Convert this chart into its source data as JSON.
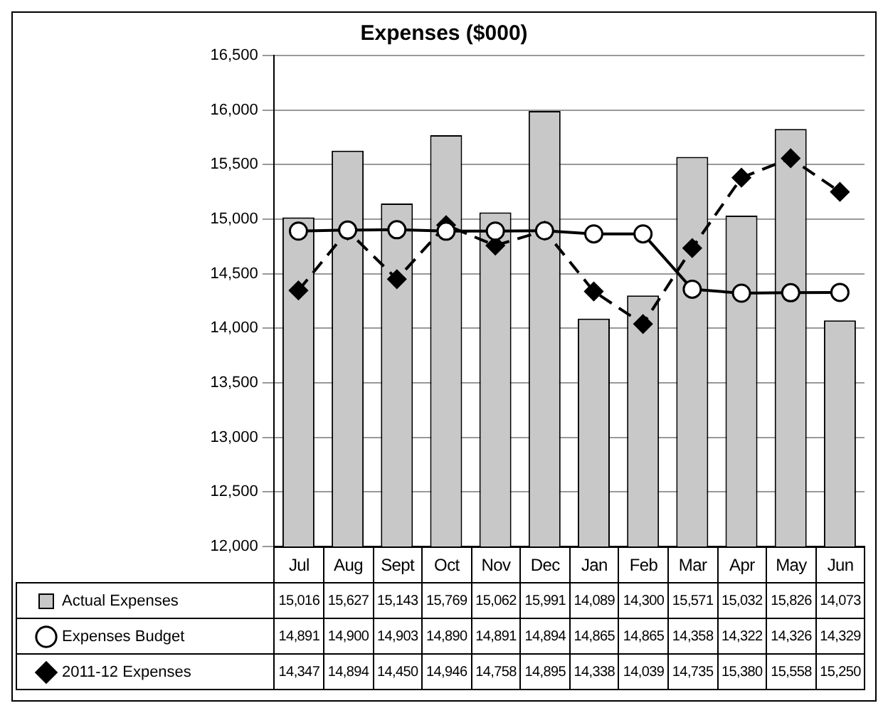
{
  "chart_data": {
    "type": "bar",
    "title": "Expenses ($000)",
    "categories": [
      "Jul",
      "Aug",
      "Sept",
      "Oct",
      "Nov",
      "Dec",
      "Jan",
      "Feb",
      "Mar",
      "Apr",
      "May",
      "Jun"
    ],
    "series": [
      {
        "name": "Actual Expenses",
        "color": "#c8c8c8",
        "values": [
          15016,
          15627,
          15143,
          15769,
          15062,
          15991,
          14089,
          14300,
          15571,
          15032,
          15826,
          14073
        ],
        "value_labels": [
          "15,016",
          "15,627",
          "15,143",
          "15,769",
          "15,062",
          "15,991",
          "14,089",
          "14,300",
          "15,571",
          "15,032",
          "15,826",
          "14,073"
        ]
      },
      {
        "name": "Expenses Budget",
        "type": "line",
        "color": "#000000",
        "marker": "circle",
        "line_style": "solid",
        "values": [
          14891,
          14900,
          14903,
          14890,
          14891,
          14894,
          14865,
          14865,
          14358,
          14322,
          14326,
          14329
        ],
        "value_labels": [
          "14,891",
          "14,900",
          "14,903",
          "14,890",
          "14,891",
          "14,894",
          "14,865",
          "14,865",
          "14,358",
          "14,322",
          "14,326",
          "14,329"
        ]
      },
      {
        "name": "2011-12 Expenses",
        "type": "line",
        "color": "#000000",
        "marker": "diamond",
        "line_style": "dashed",
        "values": [
          14347,
          14894,
          14450,
          14946,
          14758,
          14895,
          14338,
          14039,
          14735,
          15380,
          15558,
          15250
        ],
        "value_labels": [
          "14,347",
          "14,894",
          "14,450",
          "14,946",
          "14,758",
          "14,895",
          "14,338",
          "14,039",
          "14,735",
          "15,380",
          "15,558",
          "15,250"
        ]
      }
    ],
    "ylim": [
      12000,
      16500
    ],
    "yticks": [
      {
        "value": 12000,
        "label": "12,000"
      },
      {
        "value": 12500,
        "label": "12,500"
      },
      {
        "value": 13000,
        "label": "13,000"
      },
      {
        "value": 13500,
        "label": "13,500"
      },
      {
        "value": 14000,
        "label": "14,000"
      },
      {
        "value": 14500,
        "label": "14,500"
      },
      {
        "value": 15000,
        "label": "15,000"
      },
      {
        "value": 15500,
        "label": "15,500"
      },
      {
        "value": 16000,
        "label": "16,000"
      },
      {
        "value": 16500,
        "label": "16,500"
      }
    ],
    "grid": "y",
    "legend": "bottom left"
  }
}
